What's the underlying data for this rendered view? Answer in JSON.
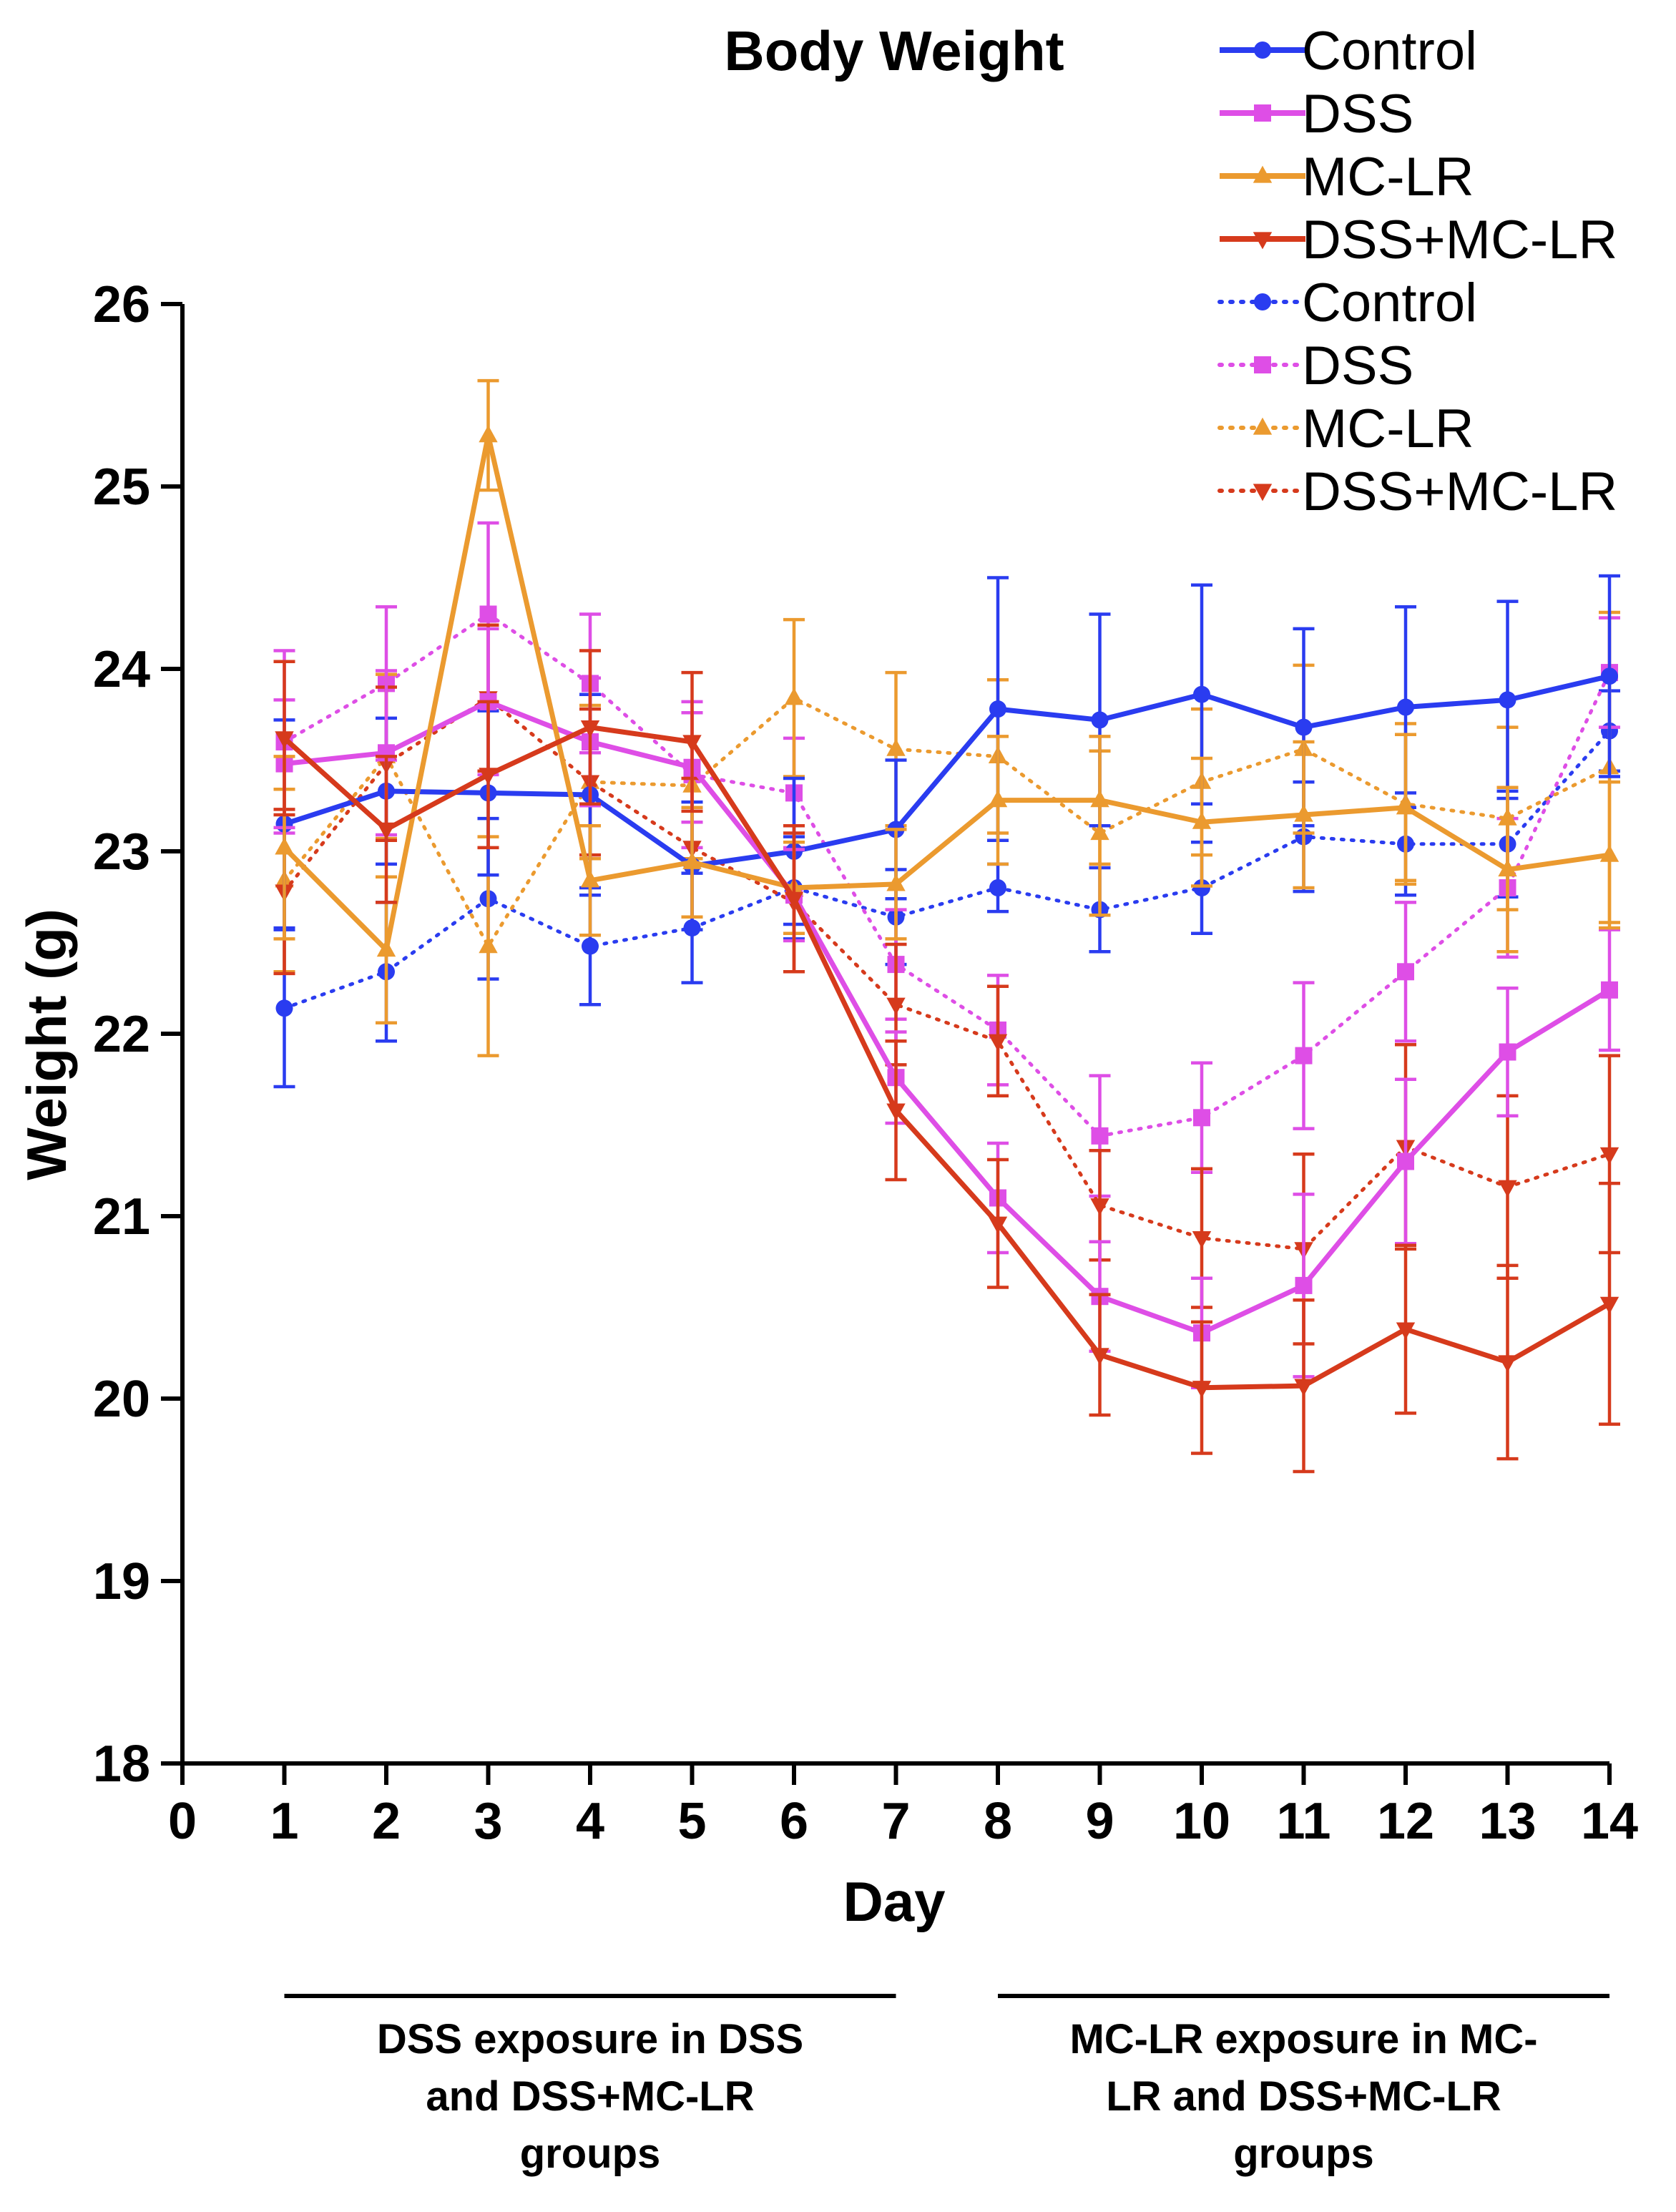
{
  "chart_data": {
    "type": "line",
    "title": "Body Weight",
    "xlabel": "Day",
    "ylabel": "Weight (g)",
    "xlim": [
      0,
      14
    ],
    "ylim": [
      18,
      26
    ],
    "x_ticks": [
      "0",
      "1",
      "2",
      "3",
      "4",
      "5",
      "6",
      "7",
      "8",
      "9",
      "10",
      "11",
      "12",
      "13",
      "14"
    ],
    "y_ticks": [
      "18",
      "19",
      "20",
      "21",
      "22",
      "23",
      "24",
      "25",
      "26"
    ],
    "grid": false,
    "legend_position": "top-right",
    "x": [
      1,
      2,
      3,
      4,
      5,
      6,
      7,
      8,
      9,
      10,
      11,
      12,
      13,
      14
    ],
    "series": [
      {
        "name": "Control",
        "color": "#2a3cf0",
        "style": "solid",
        "marker": "circle",
        "values": [
          23.15,
          23.33,
          23.32,
          23.31,
          22.92,
          23.0,
          23.12,
          23.78,
          23.72,
          23.86,
          23.68,
          23.79,
          23.83,
          23.96
        ],
        "errors": [
          0.57,
          0.4,
          0.45,
          0.55,
          0.35,
          0.4,
          0.38,
          0.72,
          0.58,
          0.6,
          0.54,
          0.55,
          0.54,
          0.55
        ]
      },
      {
        "name": "DSS",
        "color": "#de4ee6",
        "style": "solid",
        "marker": "square",
        "values": [
          23.48,
          23.54,
          23.82,
          23.6,
          23.46,
          22.76,
          21.76,
          21.1,
          20.56,
          20.36,
          20.62,
          21.3,
          21.9,
          22.24
        ],
        "errors": [
          0.35,
          0.45,
          0.4,
          0.35,
          0.3,
          0.25,
          0.25,
          0.3,
          0.3,
          0.3,
          0.5,
          0.45,
          0.35,
          0.33
        ]
      },
      {
        "name": "MC-LR",
        "color": "#eb9a2f",
        "style": "solid",
        "marker": "triangle-up",
        "values": [
          23.02,
          22.46,
          25.28,
          22.84,
          22.94,
          22.8,
          22.82,
          23.28,
          23.28,
          23.16,
          23.2,
          23.24,
          22.9,
          22.98
        ],
        "errors": [
          0.5,
          0.4,
          0.3,
          0.3,
          0.3,
          0.25,
          0.3,
          0.35,
          0.35,
          0.35,
          0.4,
          0.4,
          0.45,
          0.4
        ]
      },
      {
        "name": "DSS+MC-LR",
        "color": "#d63a1c",
        "style": "solid",
        "marker": "triangle-down",
        "values": [
          23.62,
          23.12,
          23.42,
          23.68,
          23.6,
          22.74,
          21.58,
          20.96,
          20.24,
          20.06,
          20.07,
          20.38,
          20.2,
          20.52
        ],
        "errors": [
          0.42,
          0.4,
          0.4,
          0.42,
          0.38,
          0.4,
          0.38,
          0.35,
          0.33,
          0.36,
          0.47,
          0.46,
          0.53,
          0.66
        ]
      },
      {
        "name": "Control",
        "color": "#2a3cf0",
        "style": "dotted",
        "marker": "circle",
        "values": [
          22.14,
          22.34,
          22.74,
          22.48,
          22.58,
          22.8,
          22.64,
          22.8,
          22.68,
          22.8,
          23.08,
          23.04,
          23.04,
          23.66
        ],
        "errors": [
          0.43,
          0.38,
          0.44,
          0.32,
          0.3,
          0.28,
          0.26,
          0.13,
          0.23,
          0.25,
          0.3,
          0.28,
          0.29,
          0.22
        ]
      },
      {
        "name": "DSS",
        "color": "#de4ee6",
        "style": "dotted",
        "marker": "square",
        "values": [
          23.6,
          23.92,
          24.3,
          23.92,
          23.42,
          23.32,
          22.38,
          22.02,
          21.44,
          21.54,
          21.88,
          22.34,
          22.8,
          23.98
        ],
        "errors": [
          0.5,
          0.42,
          0.5,
          0.38,
          0.4,
          0.3,
          0.3,
          0.3,
          0.33,
          0.3,
          0.4,
          0.38,
          0.38,
          0.3
        ]
      },
      {
        "name": "MC-LR",
        "color": "#eb9a2f",
        "style": "dotted",
        "marker": "triangle-up",
        "values": [
          22.84,
          23.52,
          22.48,
          23.38,
          23.36,
          23.84,
          23.56,
          23.52,
          23.1,
          23.38,
          23.56,
          23.26,
          23.18,
          23.46
        ],
        "errors": [
          0.5,
          0.45,
          0.6,
          0.42,
          0.4,
          0.43,
          0.42,
          0.42,
          0.45,
          0.4,
          0.46,
          0.44,
          0.5,
          0.85
        ]
      },
      {
        "name": "DSS+MC-LR",
        "color": "#d63a1c",
        "style": "dotted",
        "marker": "triangle-down",
        "values": [
          22.78,
          23.48,
          23.84,
          23.38,
          23.02,
          22.72,
          22.16,
          21.96,
          21.06,
          20.88,
          20.82,
          21.38,
          21.16,
          21.34
        ],
        "errors": [
          0.45,
          0.42,
          0.4,
          0.4,
          0.38,
          0.38,
          0.33,
          0.3,
          0.3,
          0.38,
          0.52,
          0.56,
          0.5,
          0.54
        ]
      }
    ],
    "annotations": [
      {
        "text": "DSS exposure in DSS and DSS+MC-LR groups",
        "from_day": 1,
        "to_day": 7,
        "lines": [
          "DSS exposure in DSS",
          "and DSS+MC-LR",
          "groups"
        ]
      },
      {
        "text": "MC-LR exposure in MC-LR and DSS+MC-LR groups",
        "from_day": 8,
        "to_day": 14,
        "lines": [
          "MC-LR exposure in MC-",
          "LR and DSS+MC-LR",
          "groups"
        ]
      }
    ]
  }
}
